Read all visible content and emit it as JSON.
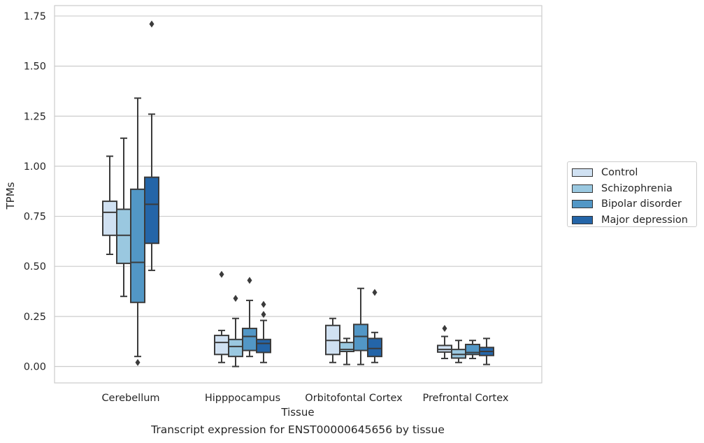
{
  "chart_data": {
    "type": "box",
    "title": "",
    "xlabel": "Tissue",
    "ylabel": "TPMs",
    "ylim": [
      -0.08,
      1.8
    ],
    "yticks": [
      "0.00",
      "0.25",
      "0.50",
      "0.75",
      "1.00",
      "1.25",
      "1.50",
      "1.75"
    ],
    "grid": "horizontal",
    "legend_position": "right",
    "categories": [
      "Cerebellum",
      "Hipppocampus",
      "Orbitofontal Cortex",
      "Prefrontal Cortex"
    ],
    "series": [
      {
        "name": "Control",
        "color": "#d0e1f2",
        "boxes": [
          {
            "whislo": 0.56,
            "q1": 0.655,
            "med": 0.77,
            "q3": 0.825,
            "whishi": 1.05,
            "fliers": []
          },
          {
            "whislo": 0.02,
            "q1": 0.06,
            "med": 0.12,
            "q3": 0.155,
            "whishi": 0.18,
            "fliers": [
              0.46
            ]
          },
          {
            "whislo": 0.02,
            "q1": 0.06,
            "med": 0.13,
            "q3": 0.205,
            "whishi": 0.24,
            "fliers": []
          },
          {
            "whislo": 0.04,
            "q1": 0.072,
            "med": 0.085,
            "q3": 0.105,
            "whishi": 0.15,
            "fliers": [
              0.19
            ]
          }
        ]
      },
      {
        "name": "Schizophrenia",
        "color": "#9ac8e0",
        "boxes": [
          {
            "whislo": 0.35,
            "q1": 0.515,
            "med": 0.655,
            "q3": 0.785,
            "whishi": 1.14,
            "fliers": []
          },
          {
            "whislo": 0.0,
            "q1": 0.05,
            "med": 0.1,
            "q3": 0.135,
            "whishi": 0.24,
            "fliers": [
              0.34
            ]
          },
          {
            "whislo": 0.01,
            "q1": 0.075,
            "med": 0.085,
            "q3": 0.12,
            "whishi": 0.14,
            "fliers": []
          },
          {
            "whislo": 0.02,
            "q1": 0.042,
            "med": 0.06,
            "q3": 0.085,
            "whishi": 0.13,
            "fliers": []
          }
        ]
      },
      {
        "name": "Bipolar disorder",
        "color": "#5297c6",
        "boxes": [
          {
            "whislo": 0.05,
            "q1": 0.32,
            "med": 0.52,
            "q3": 0.885,
            "whishi": 1.34,
            "fliers": [
              0.02
            ]
          },
          {
            "whislo": 0.05,
            "q1": 0.08,
            "med": 0.15,
            "q3": 0.19,
            "whishi": 0.33,
            "fliers": [
              0.43
            ]
          },
          {
            "whislo": 0.01,
            "q1": 0.08,
            "med": 0.15,
            "q3": 0.21,
            "whishi": 0.39,
            "fliers": []
          },
          {
            "whislo": 0.04,
            "q1": 0.06,
            "med": 0.07,
            "q3": 0.11,
            "whishi": 0.13,
            "fliers": []
          }
        ]
      },
      {
        "name": "Major depression",
        "color": "#2465a8",
        "boxes": [
          {
            "whislo": 0.48,
            "q1": 0.615,
            "med": 0.81,
            "q3": 0.945,
            "whishi": 1.26,
            "fliers": [
              1.71
            ]
          },
          {
            "whislo": 0.02,
            "q1": 0.07,
            "med": 0.115,
            "q3": 0.135,
            "whishi": 0.23,
            "fliers": [
              0.26,
              0.31
            ]
          },
          {
            "whislo": 0.02,
            "q1": 0.05,
            "med": 0.09,
            "q3": 0.14,
            "whishi": 0.17,
            "fliers": [
              0.37
            ]
          },
          {
            "whislo": 0.01,
            "q1": 0.055,
            "med": 0.075,
            "q3": 0.095,
            "whishi": 0.14,
            "fliers": []
          }
        ]
      }
    ],
    "caption": "Transcript expression for ENST00000645656 by tissue"
  }
}
